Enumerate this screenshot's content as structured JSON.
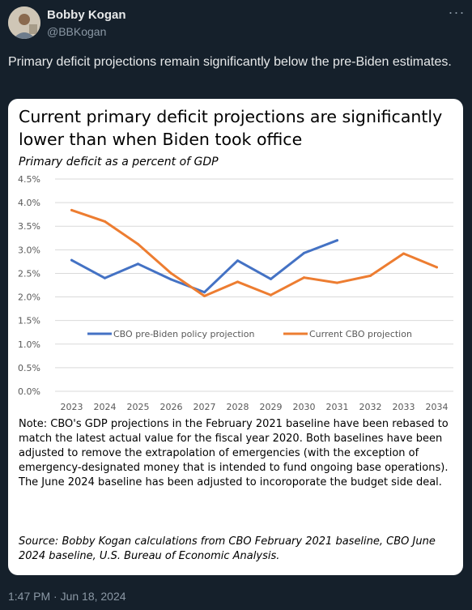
{
  "author": {
    "display_name": "Bobby Kogan",
    "handle": "@BBKogan",
    "more_icon": "more-horizontal-icon"
  },
  "tweet": {
    "text": "Primary deficit projections remain significantly below the pre-Biden estimates.",
    "timestamp": "1:47 PM · Jun 18, 2024"
  },
  "image": {
    "title": "Current primary deficit projections are significantly lower than when Biden took office",
    "subtitle": "Primary deficit as a percent of GDP",
    "note": "Note: CBO's GDP projections in the February 2021 baseline have been rebased to match the latest actual value for the fiscal year 2020. Both baselines have been adjusted to remove the extrapolation of emergencies (with the exception of emergency-designated money that is intended to fund ongoing base operations). The June 2024 baseline has been adjusted to incoroporate the budget side deal.",
    "source": "Source: Bobby Kogan calculations from CBO February 2021 baseline, CBO June 2024 baseline, U.S. Bureau of Economic Analysis."
  },
  "chart_data": {
    "type": "line",
    "x": [
      "2023",
      "2024",
      "2025",
      "2026",
      "2027",
      "2028",
      "2029",
      "2030",
      "2031",
      "2032",
      "2033",
      "2034"
    ],
    "y_ticks": [
      "0.0%",
      "0.5%",
      "1.0%",
      "1.5%",
      "2.0%",
      "2.5%",
      "3.0%",
      "3.5%",
      "4.0%",
      "4.5%"
    ],
    "ylim": [
      0,
      4.5
    ],
    "grid": true,
    "legend_placement": "center",
    "series": [
      {
        "name": "CBO pre-Biden policy projection",
        "color": "#4472c4",
        "values": [
          2.78,
          2.4,
          2.7,
          2.37,
          2.1,
          2.77,
          2.38,
          2.93,
          3.2,
          null,
          null,
          null
        ]
      },
      {
        "name": "Current CBO projection",
        "color": "#ed7d31",
        "values": [
          3.84,
          3.6,
          3.12,
          2.5,
          2.02,
          2.32,
          2.04,
          2.41,
          2.3,
          2.45,
          2.92,
          2.63
        ]
      }
    ]
  }
}
